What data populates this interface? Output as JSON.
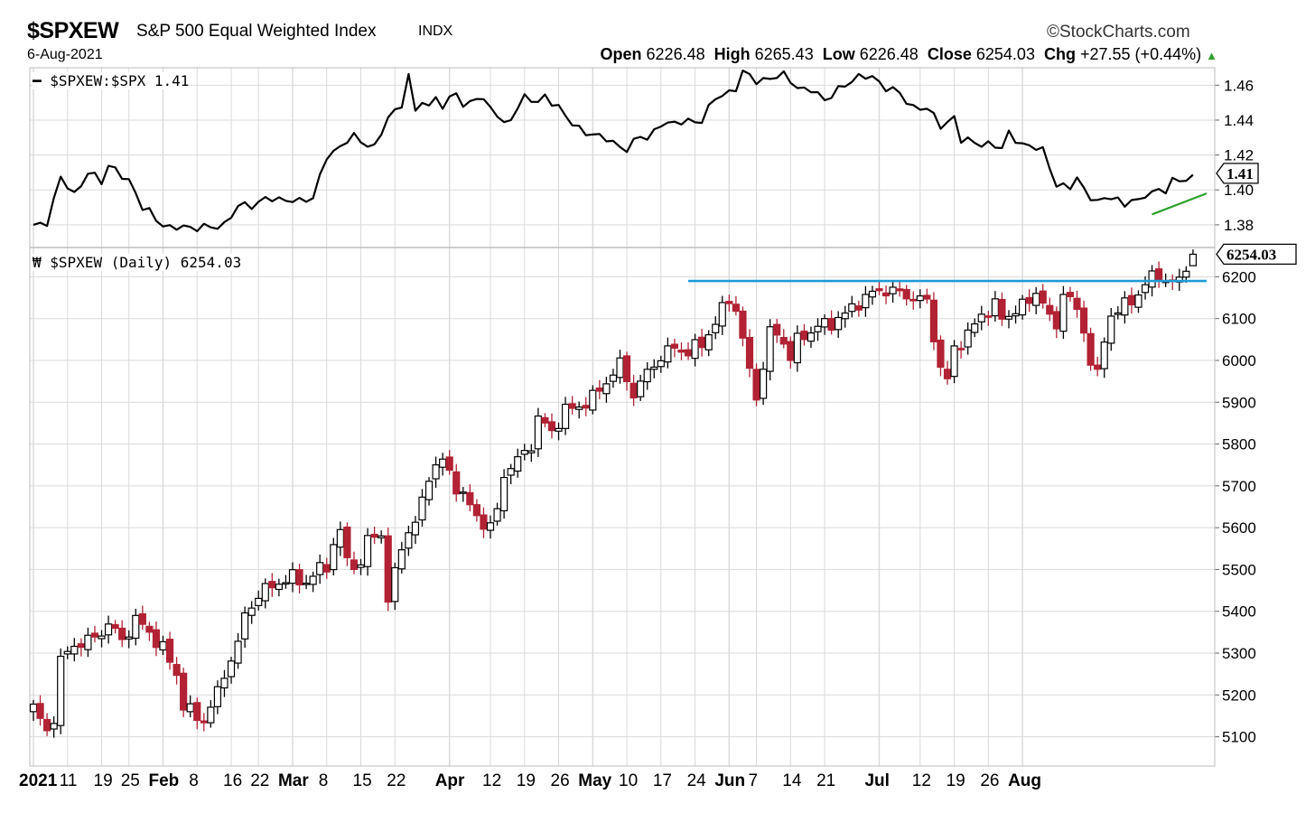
{
  "header": {
    "symbol": "$SPXEW",
    "name": "S&P 500 Equal Weighted Index",
    "exchange": "INDX",
    "date": "6-Aug-2021",
    "brand": "StockCharts.com",
    "open_label": "Open",
    "open": "6226.48",
    "high_label": "High",
    "high": "6265.43",
    "low_label": "Low",
    "low": "6226.48",
    "close_label": "Close",
    "close": "6254.03",
    "chg_label": "Chg",
    "chg": "+27.55 (+0.44%)",
    "up_arrow": "▲"
  },
  "colors": {
    "line": "#000000",
    "up_candle": "#ffffff",
    "down_candle": "#b22234",
    "grid": "#d9d9d9",
    "resistance": "#1e9bd7",
    "trend": "#2ea02e",
    "arrow": "#2ea02e"
  },
  "chart_data": [
    {
      "type": "line",
      "panel": "ratio",
      "legend": "$SPXEW:$SPX 1.41",
      "last_value_label": "1.41",
      "y_ticks": [
        1.38,
        1.4,
        1.42,
        1.44,
        1.46
      ],
      "ylim": [
        1.367,
        1.47
      ],
      "anchors": [
        [
          0,
          1.38
        ],
        [
          2,
          1.382
        ],
        [
          4,
          1.406
        ],
        [
          6,
          1.398
        ],
        [
          8,
          1.41
        ],
        [
          10,
          1.404
        ],
        [
          11,
          1.414
        ],
        [
          12,
          1.413
        ],
        [
          14,
          1.404
        ],
        [
          16,
          1.39
        ],
        [
          17,
          1.389
        ],
        [
          19,
          1.379
        ],
        [
          20,
          1.377
        ],
        [
          22,
          1.38
        ],
        [
          24,
          1.378
        ],
        [
          26,
          1.378
        ],
        [
          28,
          1.381
        ],
        [
          30,
          1.39
        ],
        [
          32,
          1.391
        ],
        [
          34,
          1.396
        ],
        [
          36,
          1.393
        ],
        [
          38,
          1.395
        ],
        [
          41,
          1.394
        ],
        [
          43,
          1.42
        ],
        [
          47,
          1.43
        ],
        [
          50,
          1.425
        ],
        [
          52,
          1.44
        ],
        [
          54,
          1.45
        ],
        [
          55,
          1.466
        ],
        [
          56,
          1.445
        ],
        [
          57,
          1.45
        ],
        [
          58,
          1.446
        ],
        [
          59,
          1.455
        ],
        [
          60,
          1.448
        ],
        [
          62,
          1.456
        ],
        [
          63,
          1.446
        ],
        [
          65,
          1.455
        ],
        [
          67,
          1.447
        ],
        [
          69,
          1.437
        ],
        [
          72,
          1.453
        ],
        [
          74,
          1.449
        ],
        [
          75,
          1.455
        ],
        [
          77,
          1.447
        ],
        [
          79,
          1.437
        ],
        [
          81,
          1.434
        ],
        [
          83,
          1.43
        ],
        [
          85,
          1.427
        ],
        [
          87,
          1.424
        ],
        [
          89,
          1.43
        ],
        [
          90,
          1.429
        ],
        [
          92,
          1.439
        ],
        [
          94,
          1.437
        ],
        [
          96,
          1.44
        ],
        [
          98,
          1.44
        ],
        [
          100,
          1.452
        ],
        [
          103,
          1.459
        ],
        [
          104,
          1.467
        ],
        [
          106,
          1.462
        ],
        [
          108,
          1.465
        ],
        [
          110,
          1.465
        ],
        [
          112,
          1.459
        ],
        [
          114,
          1.458
        ],
        [
          116,
          1.45
        ],
        [
          118,
          1.459
        ],
        [
          120,
          1.462
        ],
        [
          122,
          1.465
        ],
        [
          123,
          1.466
        ],
        [
          125,
          1.458
        ],
        [
          127,
          1.455
        ],
        [
          129,
          1.448
        ],
        [
          131,
          1.446
        ],
        [
          133,
          1.437
        ],
        [
          135,
          1.442
        ],
        [
          136,
          1.428
        ],
        [
          138,
          1.427
        ],
        [
          140,
          1.427
        ],
        [
          142,
          1.423
        ],
        [
          143,
          1.432
        ],
        [
          145,
          1.427
        ],
        [
          146,
          1.425
        ],
        [
          148,
          1.422
        ],
        [
          150,
          1.404
        ],
        [
          152,
          1.401
        ],
        [
          153,
          1.406
        ],
        [
          154,
          1.4
        ],
        [
          156,
          1.394
        ],
        [
          158,
          1.395
        ],
        [
          160,
          1.392
        ],
        [
          161,
          1.396
        ],
        [
          162,
          1.393
        ],
        [
          163,
          1.396
        ],
        [
          165,
          1.4
        ],
        [
          166,
          1.401
        ],
        [
          167,
          1.406
        ],
        [
          168,
          1.404
        ],
        [
          170,
          1.407
        ]
      ],
      "trendline": {
        "from": [
          164,
          1.386
        ],
        "to": [
          172,
          1.398
        ]
      }
    },
    {
      "type": "candlestick",
      "panel": "price",
      "legend": "$SPXEW (Daily) 6254.03",
      "last_value_label": "6254.03",
      "y_ticks": [
        5100,
        5200,
        5300,
        5400,
        5500,
        5600,
        5700,
        5800,
        5900,
        6000,
        6100,
        6200
      ],
      "ylim": [
        5030,
        6270
      ],
      "anchors": [
        [
          0,
          5170
        ],
        [
          2,
          5110
        ],
        [
          3,
          5150
        ],
        [
          4,
          5280
        ],
        [
          6,
          5320
        ],
        [
          9,
          5335
        ],
        [
          11,
          5370
        ],
        [
          13,
          5330
        ],
        [
          15,
          5380
        ],
        [
          17,
          5350
        ],
        [
          19,
          5310
        ],
        [
          21,
          5250
        ],
        [
          22,
          5175
        ],
        [
          24,
          5145
        ],
        [
          25,
          5140
        ],
        [
          27,
          5205
        ],
        [
          29,
          5290
        ],
        [
          30,
          5320
        ],
        [
          31,
          5390
        ],
        [
          33,
          5440
        ],
        [
          36,
          5470
        ],
        [
          38,
          5480
        ],
        [
          40,
          5470
        ],
        [
          42,
          5500
        ],
        [
          43,
          5510
        ],
        [
          44,
          5560
        ],
        [
          45,
          5590
        ],
        [
          46,
          5520
        ],
        [
          48,
          5510
        ],
        [
          49,
          5570
        ],
        [
          51,
          5590
        ],
        [
          52,
          5420
        ],
        [
          54,
          5560
        ],
        [
          55,
          5590
        ],
        [
          56,
          5610
        ],
        [
          57,
          5660
        ],
        [
          58,
          5730
        ],
        [
          60,
          5760
        ],
        [
          62,
          5700
        ],
        [
          64,
          5650
        ],
        [
          66,
          5610
        ],
        [
          67,
          5600
        ],
        [
          68,
          5640
        ],
        [
          69,
          5730
        ],
        [
          71,
          5760
        ],
        [
          73,
          5800
        ],
        [
          74,
          5860
        ],
        [
          76,
          5830
        ],
        [
          78,
          5880
        ],
        [
          80,
          5890
        ],
        [
          82,
          5910
        ],
        [
          84,
          5950
        ],
        [
          86,
          5990
        ],
        [
          88,
          5920
        ],
        [
          90,
          5970
        ],
        [
          92,
          6010
        ],
        [
          94,
          6030
        ],
        [
          96,
          6020
        ],
        [
          98,
          6040
        ],
        [
          100,
          6090
        ],
        [
          102,
          6150
        ],
        [
          103,
          6120
        ],
        [
          104,
          6050
        ],
        [
          105,
          5970
        ],
        [
          106,
          5920
        ],
        [
          107,
          5980
        ],
        [
          108,
          6070
        ],
        [
          110,
          6050
        ],
        [
          111,
          6000
        ],
        [
          112,
          6050
        ],
        [
          113,
          6060
        ],
        [
          115,
          6080
        ],
        [
          117,
          6090
        ],
        [
          119,
          6110
        ],
        [
          121,
          6140
        ],
        [
          123,
          6160
        ],
        [
          125,
          6170
        ],
        [
          127,
          6160
        ],
        [
          129,
          6150
        ],
        [
          131,
          6140
        ],
        [
          132,
          6060
        ],
        [
          133,
          5980
        ],
        [
          134,
          5950
        ],
        [
          135,
          6030
        ],
        [
          137,
          6060
        ],
        [
          139,
          6110
        ],
        [
          141,
          6130
        ],
        [
          142,
          6100
        ],
        [
          144,
          6120
        ],
        [
          145,
          6130
        ],
        [
          146,
          6140
        ],
        [
          147,
          6170
        ],
        [
          149,
          6100
        ],
        [
          150,
          6080
        ],
        [
          151,
          6170
        ],
        [
          152,
          6140
        ],
        [
          153,
          6120
        ],
        [
          154,
          6070
        ],
        [
          155,
          6000
        ],
        [
          156,
          5960
        ],
        [
          157,
          6050
        ],
        [
          158,
          6110
        ],
        [
          160,
          6130
        ],
        [
          162,
          6160
        ],
        [
          163,
          6180
        ],
        [
          164,
          6200
        ],
        [
          165,
          6205
        ],
        [
          167,
          6180
        ],
        [
          168,
          6195
        ],
        [
          170,
          6254
        ]
      ],
      "resistance": {
        "value": 6190,
        "from": 96,
        "to": 172
      },
      "last_candle": {
        "open": 6226.48,
        "high": 6265.43,
        "low": 6226.48,
        "close": 6254.03
      }
    }
  ],
  "x_axis": {
    "num_days": 172,
    "labels": [
      {
        "text": "2021",
        "day": 0,
        "bold": true
      },
      {
        "text": "11",
        "day": 5,
        "bold": false
      },
      {
        "text": "19",
        "day": 10,
        "bold": false
      },
      {
        "text": "25",
        "day": 14,
        "bold": false
      },
      {
        "text": "Feb",
        "day": 19,
        "bold": true
      },
      {
        "text": "8",
        "day": 24,
        "bold": false
      },
      {
        "text": "16",
        "day": 29,
        "bold": false
      },
      {
        "text": "22",
        "day": 33,
        "bold": false
      },
      {
        "text": "Mar",
        "day": 38,
        "bold": true
      },
      {
        "text": "8",
        "day": 43,
        "bold": false
      },
      {
        "text": "15",
        "day": 48,
        "bold": false
      },
      {
        "text": "22",
        "day": 53,
        "bold": false
      },
      {
        "text": "Apr",
        "day": 61,
        "bold": true
      },
      {
        "text": "12",
        "day": 67,
        "bold": false
      },
      {
        "text": "19",
        "day": 72,
        "bold": false
      },
      {
        "text": "26",
        "day": 77,
        "bold": false
      },
      {
        "text": "May",
        "day": 82,
        "bold": true
      },
      {
        "text": "10",
        "day": 87,
        "bold": false
      },
      {
        "text": "17",
        "day": 92,
        "bold": false
      },
      {
        "text": "24",
        "day": 97,
        "bold": false
      },
      {
        "text": "Jun",
        "day": 102,
        "bold": true
      },
      {
        "text": "7",
        "day": 106,
        "bold": false
      },
      {
        "text": "14",
        "day": 111,
        "bold": false
      },
      {
        "text": "21",
        "day": 116,
        "bold": false
      },
      {
        "text": "Jul",
        "day": 124,
        "bold": true
      },
      {
        "text": "12",
        "day": 130,
        "bold": false
      },
      {
        "text": "19",
        "day": 135,
        "bold": false
      },
      {
        "text": "26",
        "day": 140,
        "bold": false
      },
      {
        "text": "Aug",
        "day": 145,
        "bold": true
      }
    ]
  }
}
